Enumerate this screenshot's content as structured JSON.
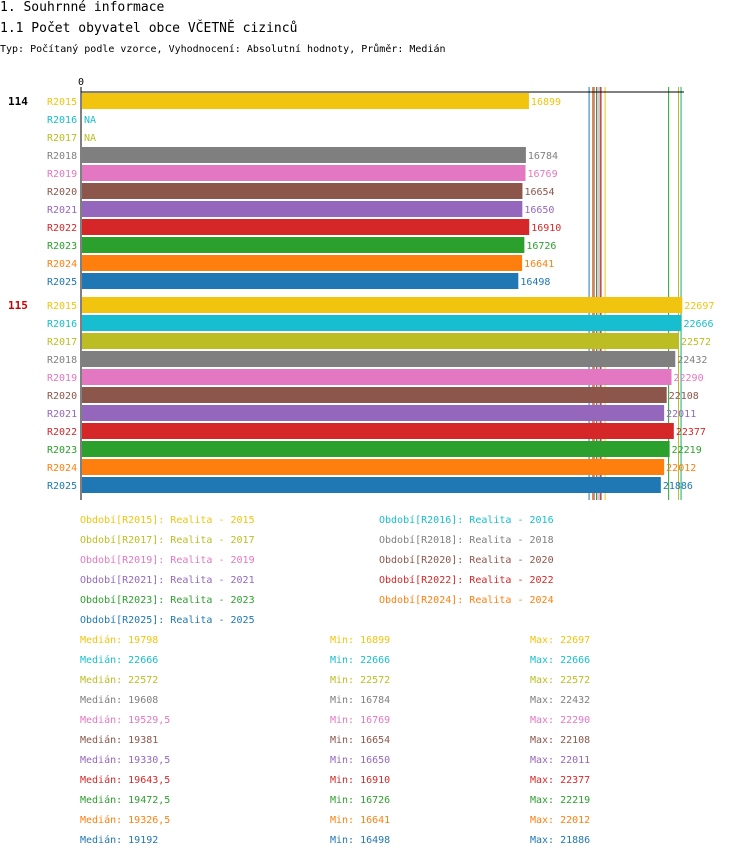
{
  "page": {
    "heading1": "1. Souhrnné informace",
    "heading2": "1.1 Počet obyvatel obce VČETNĚ cizinců",
    "subtitle": "Typ: Počítaný podle vzorce, Vyhodnocení: Absolutní hodnoty, Průměr: Medián"
  },
  "chart_data": {
    "type": "bar",
    "orientation": "horizontal",
    "axis_min": 0,
    "axis_max": 22800,
    "axis_label": "0",
    "colors": {
      "R2015": "#f1c40f",
      "R2016": "#17becf",
      "R2017": "#bcbd22",
      "R2018": "#7f7f7f",
      "R2019": "#e377c2",
      "R2020": "#8c564b",
      "R2021": "#9467bd",
      "R2022": "#d62728",
      "R2023": "#2ca02c",
      "R2024": "#ff7f0e",
      "R2025": "#1f77b4"
    },
    "groups": [
      {
        "label": "114",
        "label_color": "#000000",
        "bars": [
          {
            "series": "R2015",
            "value": 16899,
            "text": "16899"
          },
          {
            "series": "R2016",
            "value": null,
            "text": "NA"
          },
          {
            "series": "R2017",
            "value": null,
            "text": "NA"
          },
          {
            "series": "R2018",
            "value": 16784,
            "text": "16784"
          },
          {
            "series": "R2019",
            "value": 16769,
            "text": "16769"
          },
          {
            "series": "R2020",
            "value": 16654,
            "text": "16654"
          },
          {
            "series": "R2021",
            "value": 16650,
            "text": "16650"
          },
          {
            "series": "R2022",
            "value": 16910,
            "text": "16910"
          },
          {
            "series": "R2023",
            "value": 16726,
            "text": "16726"
          },
          {
            "series": "R2024",
            "value": 16641,
            "text": "16641"
          },
          {
            "series": "R2025",
            "value": 16498,
            "text": "16498"
          }
        ]
      },
      {
        "label": "115",
        "label_color": "#cc0000",
        "bars": [
          {
            "series": "R2015",
            "value": 22697,
            "text": "22697"
          },
          {
            "series": "R2016",
            "value": 22666,
            "text": "22666"
          },
          {
            "series": "R2017",
            "value": 22572,
            "text": "22572"
          },
          {
            "series": "R2018",
            "value": 22432,
            "text": "22432"
          },
          {
            "series": "R2019",
            "value": 22290,
            "text": "22290"
          },
          {
            "series": "R2020",
            "value": 22108,
            "text": "22108"
          },
          {
            "series": "R2021",
            "value": 22011,
            "text": "22011"
          },
          {
            "series": "R2022",
            "value": 22377,
            "text": "22377"
          },
          {
            "series": "R2023",
            "value": 22219,
            "text": "22219"
          },
          {
            "series": "R2024",
            "value": 22012,
            "text": "22012"
          },
          {
            "series": "R2025",
            "value": 21886,
            "text": "21886"
          }
        ]
      }
    ],
    "reference_lines": [
      {
        "series": "R2015",
        "values": [
          19798,
          22697
        ]
      },
      {
        "series": "R2016",
        "values": [
          22666
        ]
      },
      {
        "series": "R2017",
        "values": [
          22572
        ]
      },
      {
        "series": "R2018",
        "values": [
          19608
        ]
      },
      {
        "series": "R2019",
        "values": [
          19529.5
        ]
      },
      {
        "series": "R2020",
        "values": [
          19381
        ]
      },
      {
        "series": "R2021",
        "values": [
          19330.5
        ]
      },
      {
        "series": "R2022",
        "values": [
          19643.5
        ]
      },
      {
        "series": "R2023",
        "values": [
          19472.5,
          22219
        ]
      },
      {
        "series": "R2024",
        "values": [
          19326.5
        ]
      },
      {
        "series": "R2025",
        "values": [
          19192
        ]
      }
    ],
    "legend": [
      {
        "series": "R2015",
        "text": "Období[R2015]: Realita - 2015"
      },
      {
        "series": "R2016",
        "text": "Období[R2016]: Realita - 2016"
      },
      {
        "series": "R2017",
        "text": "Období[R2017]: Realita - 2017"
      },
      {
        "series": "R2018",
        "text": "Období[R2018]: Realita - 2018"
      },
      {
        "series": "R2019",
        "text": "Období[R2019]: Realita - 2019"
      },
      {
        "series": "R2020",
        "text": "Období[R2020]: Realita - 2020"
      },
      {
        "series": "R2021",
        "text": "Období[R2021]: Realita - 2021"
      },
      {
        "series": "R2022",
        "text": "Období[R2022]: Realita - 2022"
      },
      {
        "series": "R2023",
        "text": "Období[R2023]: Realita - 2023"
      },
      {
        "series": "R2024",
        "text": "Období[R2024]: Realita - 2024"
      },
      {
        "series": "R2025",
        "text": "Období[R2025]: Realita - 2025"
      }
    ],
    "stats": [
      {
        "series": "R2015",
        "median": "Medián: 19798",
        "min": "Min: 16899",
        "max": "Max: 22697"
      },
      {
        "series": "R2016",
        "median": "Medián: 22666",
        "min": "Min: 22666",
        "max": "Max: 22666"
      },
      {
        "series": "R2017",
        "median": "Medián: 22572",
        "min": "Min: 22572",
        "max": "Max: 22572"
      },
      {
        "series": "R2018",
        "median": "Medián: 19608",
        "min": "Min: 16784",
        "max": "Max: 22432"
      },
      {
        "series": "R2019",
        "median": "Medián: 19529,5",
        "min": "Min: 16769",
        "max": "Max: 22290"
      },
      {
        "series": "R2020",
        "median": "Medián: 19381",
        "min": "Min: 16654",
        "max": "Max: 22108"
      },
      {
        "series": "R2021",
        "median": "Medián: 19330,5",
        "min": "Min: 16650",
        "max": "Max: 22011"
      },
      {
        "series": "R2022",
        "median": "Medián: 19643,5",
        "min": "Min: 16910",
        "max": "Max: 22377"
      },
      {
        "series": "R2023",
        "median": "Medián: 19472,5",
        "min": "Min: 16726",
        "max": "Max: 22219"
      },
      {
        "series": "R2024",
        "median": "Medián: 19326,5",
        "min": "Min: 16641",
        "max": "Max: 22012"
      },
      {
        "series": "R2025",
        "median": "Medián: 19192",
        "min": "Min: 16498",
        "max": "Max: 21886"
      }
    ]
  }
}
